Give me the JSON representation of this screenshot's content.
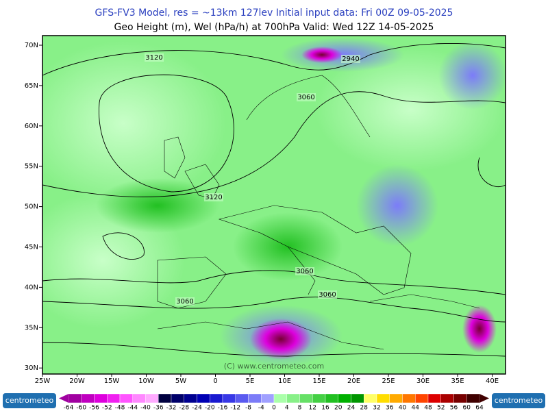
{
  "header": {
    "title": "GFS-FV3 Model, res = ~13km 127lev   Initial input data: Fri 00Z 09-05-2025",
    "subtitle": "Geo Height (m), Wel (hPa/h) at 700hPa  Valid: Wed 12Z 14-05-2025"
  },
  "map": {
    "lat_labels": [
      "70N",
      "65N",
      "60N",
      "55N",
      "50N",
      "45N",
      "40N",
      "35N",
      "30N"
    ],
    "lon_labels": [
      "25W",
      "20W",
      "15W",
      "10W",
      "5W",
      "0",
      "5E",
      "10E",
      "15E",
      "20E",
      "25E",
      "30E",
      "35E",
      "40E"
    ],
    "contour_labels": [
      "3120",
      "2940",
      "3060",
      "3120",
      "3060",
      "3060",
      "3060"
    ],
    "watermark": "(C) www.centrometeo.com"
  },
  "colorbar": {
    "labels": [
      -64,
      -60,
      -56,
      -52,
      -48,
      -44,
      -40,
      -36,
      -32,
      -28,
      -24,
      -20,
      -16,
      -12,
      -8,
      -4,
      0,
      4,
      8,
      12,
      16,
      20,
      24,
      28,
      32,
      36,
      40,
      44,
      48,
      52,
      56,
      60,
      64
    ]
  },
  "footer": {
    "logo_left": "centrometeo",
    "logo_right": "centrometeo"
  }
}
